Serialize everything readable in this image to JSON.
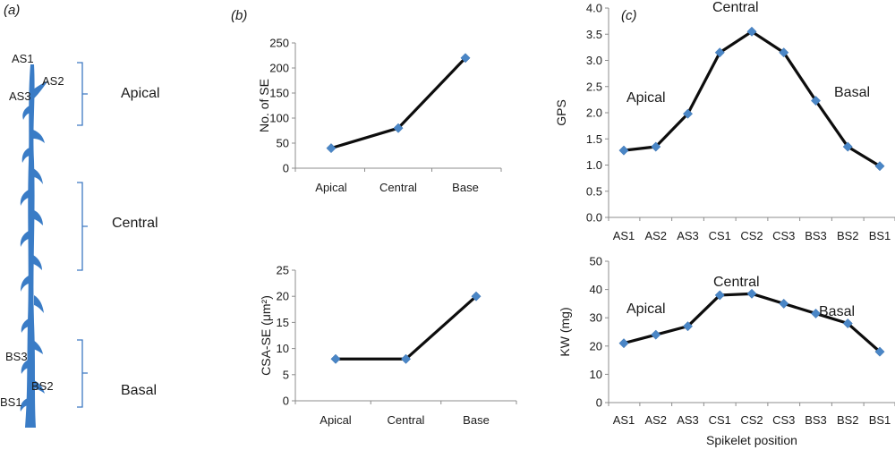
{
  "panel_a": {
    "label": "(a)",
    "spikelet_labels": [
      "AS1",
      "AS2",
      "AS3",
      "BS3",
      "BS2",
      "BS1"
    ],
    "sections": [
      "Apical",
      "Central",
      "Basal"
    ],
    "colors": {
      "spike": "#3a7cc6",
      "bracket": "#3d79c2"
    }
  },
  "panel_b_label": "(b)",
  "panel_c_label": "(c)",
  "chart_data": [
    {
      "id": "b-top",
      "type": "line",
      "categories": [
        "Apical",
        "Central",
        "Base"
      ],
      "values": [
        40,
        80,
        220
      ],
      "ylabel": "No. of SE",
      "ylim": [
        0,
        250
      ],
      "yticks": [
        "0",
        "50",
        "100",
        "150",
        "200",
        "250"
      ],
      "grid": false
    },
    {
      "id": "b-bottom",
      "type": "line",
      "categories": [
        "Apical",
        "Central",
        "Base"
      ],
      "values": [
        8,
        8,
        20
      ],
      "ylabel": "CSA-SE (μm²)",
      "ylim": [
        0,
        25
      ],
      "yticks": [
        "0",
        "5",
        "10",
        "15",
        "20",
        "25"
      ],
      "grid": false
    },
    {
      "id": "c-top",
      "type": "line",
      "categories": [
        "AS1",
        "AS2",
        "AS3",
        "CS1",
        "CS2",
        "CS3",
        "BS3",
        "BS2",
        "BS1"
      ],
      "values": [
        1.28,
        1.35,
        1.98,
        3.15,
        3.55,
        3.15,
        2.23,
        1.35,
        0.98
      ],
      "ylabel": "GPS",
      "ylim": [
        0,
        4
      ],
      "yticks": [
        "0.0",
        "0.5",
        "1.0",
        "1.5",
        "2.0",
        "2.5",
        "3.0",
        "3.5",
        "4.0"
      ],
      "annotations": [
        "Apical",
        "Central",
        "Basal"
      ],
      "grid": false
    },
    {
      "id": "c-bottom",
      "type": "line",
      "categories": [
        "AS1",
        "AS2",
        "AS3",
        "CS1",
        "CS2",
        "CS3",
        "BS3",
        "BS2",
        "BS1"
      ],
      "values": [
        21,
        24,
        27,
        38,
        38.5,
        35,
        31.5,
        28,
        18
      ],
      "ylabel": "KW (mg)",
      "xlabel": "Spikelet position",
      "ylim": [
        0,
        50
      ],
      "yticks": [
        "0",
        "10",
        "20",
        "30",
        "40",
        "50"
      ],
      "annotations": [
        "Apical",
        "Central",
        "Basal"
      ],
      "grid": false
    }
  ],
  "colors": {
    "line": "#0d0d0d",
    "marker": "#4a86c6",
    "axis": "#8c8c8c"
  }
}
